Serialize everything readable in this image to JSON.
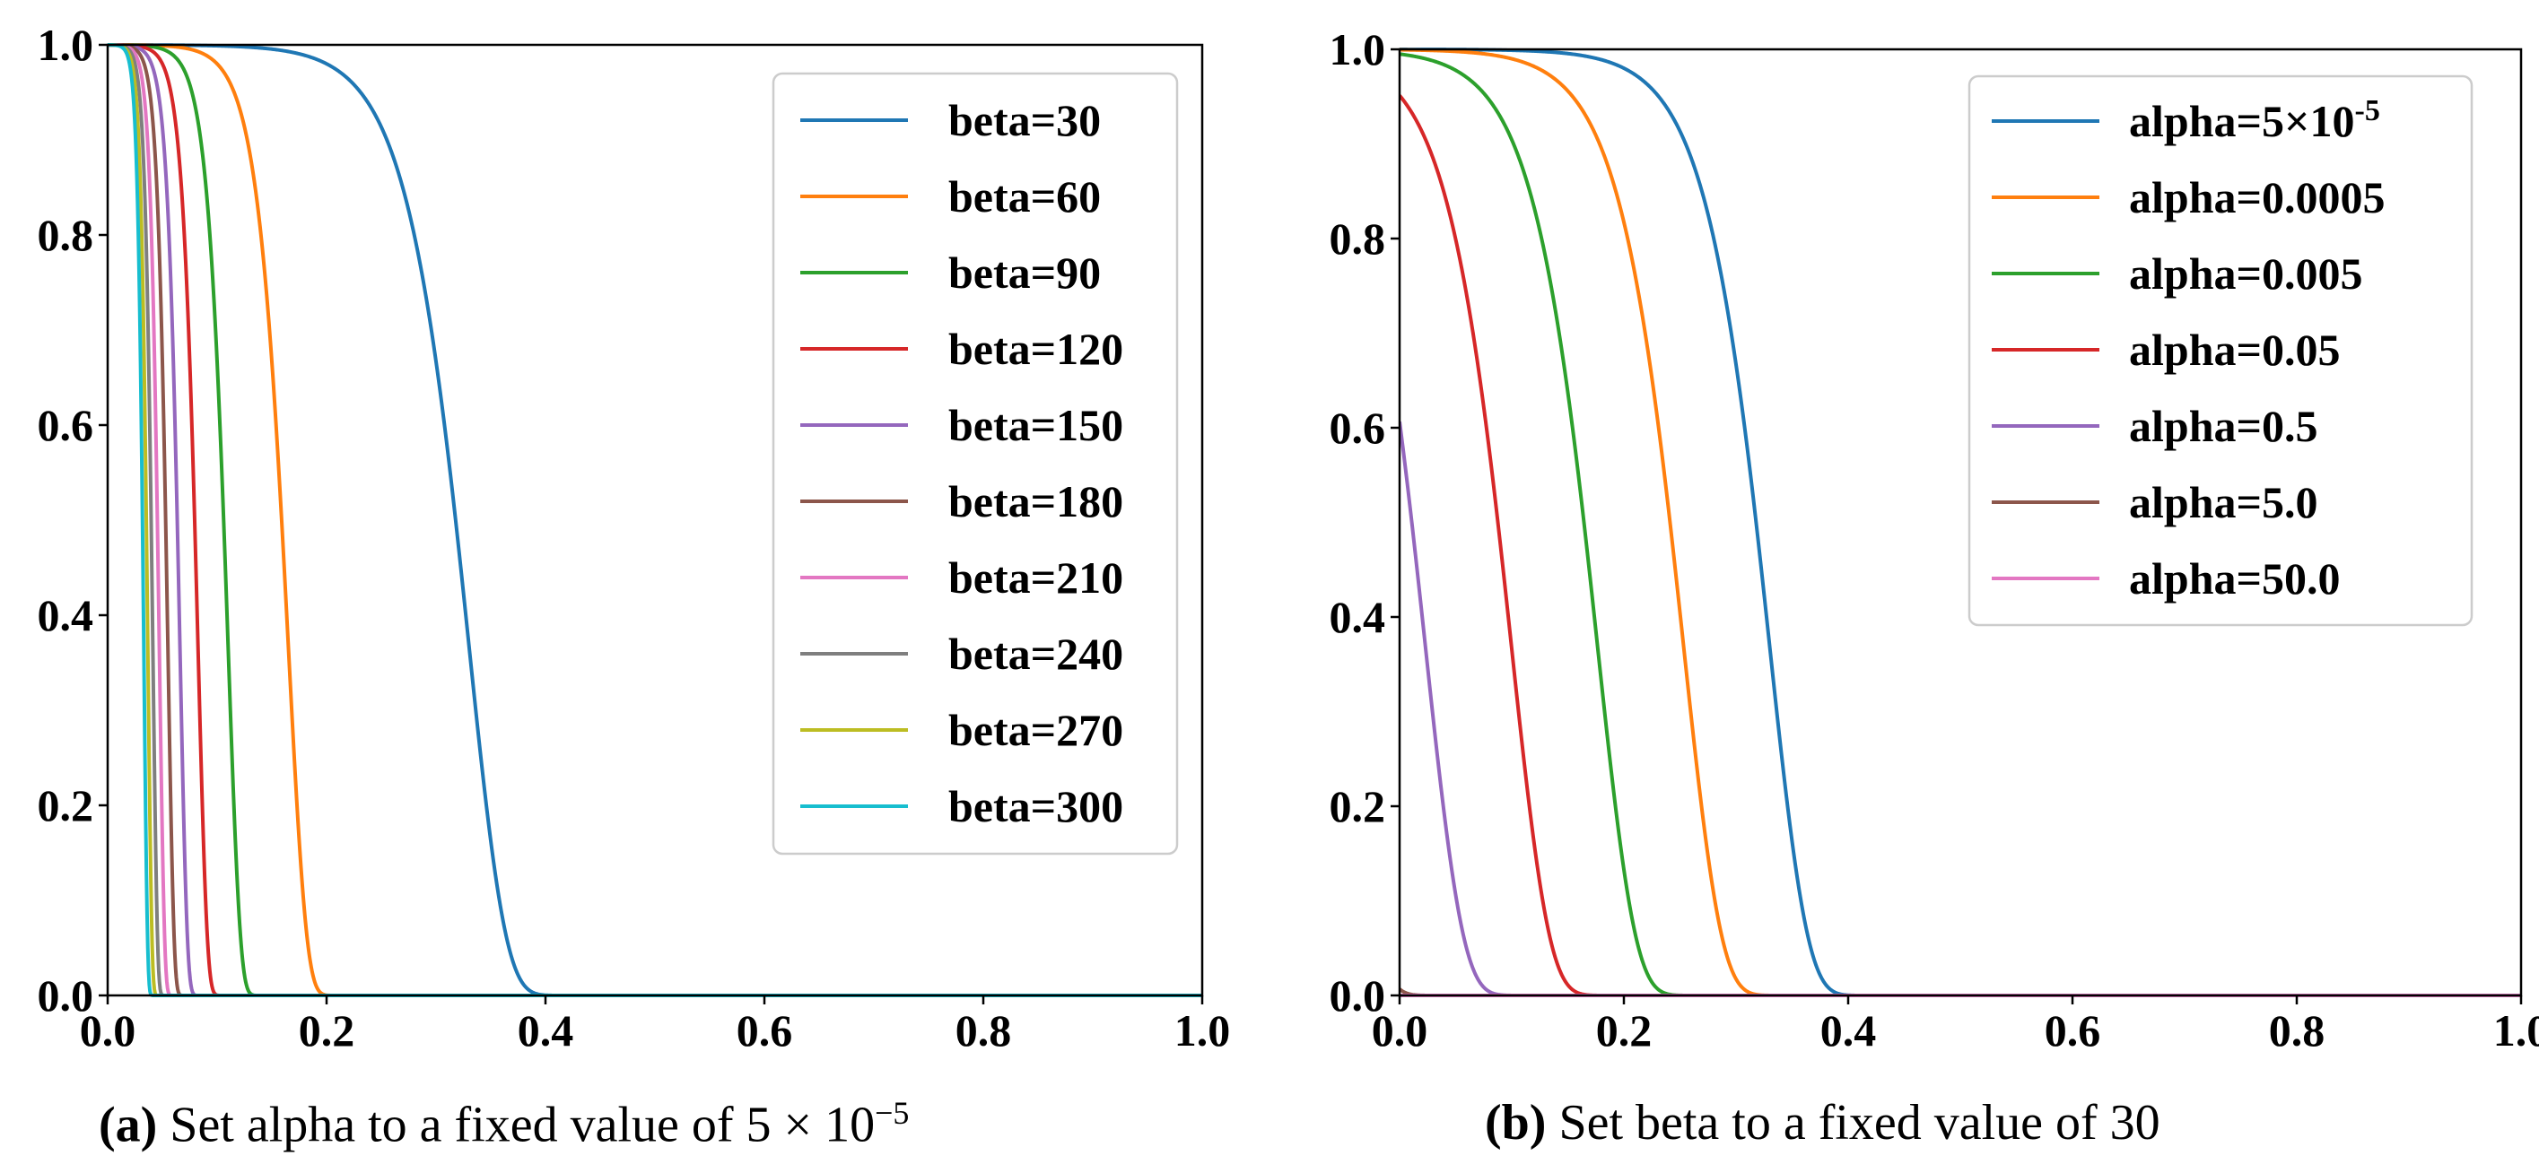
{
  "chart_data": [
    {
      "id": "a",
      "type": "line",
      "function": "exp(-alpha * exp(beta * x))",
      "alpha": 5e-05,
      "xlim": [
        0,
        1
      ],
      "ylim": [
        0,
        1
      ],
      "xticks": [
        "0.0",
        "0.2",
        "0.4",
        "0.6",
        "0.8",
        "1.0"
      ],
      "yticks": [
        "0.0",
        "0.2",
        "0.4",
        "0.6",
        "0.8",
        "1.0"
      ],
      "legend_position": "top-right",
      "series": [
        {
          "name": "beta=30",
          "beta": 30,
          "color": "#1f77b4"
        },
        {
          "name": "beta=60",
          "beta": 60,
          "color": "#ff7f0e"
        },
        {
          "name": "beta=90",
          "beta": 90,
          "color": "#2ca02c"
        },
        {
          "name": "beta=120",
          "beta": 120,
          "color": "#d62728"
        },
        {
          "name": "beta=150",
          "beta": 150,
          "color": "#9467bd"
        },
        {
          "name": "beta=180",
          "beta": 180,
          "color": "#8c564b"
        },
        {
          "name": "beta=210",
          "beta": 210,
          "color": "#e377c2"
        },
        {
          "name": "beta=240",
          "beta": 240,
          "color": "#7f7f7f"
        },
        {
          "name": "beta=270",
          "beta": 270,
          "color": "#bcbd22"
        },
        {
          "name": "beta=300",
          "beta": 300,
          "color": "#17becf"
        }
      ],
      "caption_label": "(a)",
      "caption_text": "Set alpha to a fixed value of 5 × 10",
      "caption_exp": "−5"
    },
    {
      "id": "b",
      "type": "line",
      "function": "exp(-alpha * exp(beta * x))",
      "beta": 30,
      "xlim": [
        0,
        1
      ],
      "ylim": [
        0,
        1
      ],
      "xticks": [
        "0.0",
        "0.2",
        "0.4",
        "0.6",
        "0.8",
        "1.0"
      ],
      "yticks": [
        "0.0",
        "0.2",
        "0.4",
        "0.6",
        "0.8",
        "1.0"
      ],
      "legend_position": "top-right",
      "series": [
        {
          "name": "alpha=5×10",
          "name_sup": "-5",
          "alpha": 5e-05,
          "color": "#1f77b4"
        },
        {
          "name": "alpha=0.0005",
          "alpha": 0.0005,
          "color": "#ff7f0e"
        },
        {
          "name": "alpha=0.005",
          "alpha": 0.005,
          "color": "#2ca02c"
        },
        {
          "name": "alpha=0.05",
          "alpha": 0.05,
          "color": "#d62728"
        },
        {
          "name": "alpha=0.5",
          "alpha": 0.5,
          "color": "#9467bd"
        },
        {
          "name": "alpha=5.0",
          "alpha": 5.0,
          "color": "#8c564b"
        },
        {
          "name": "alpha=50.0",
          "alpha": 50.0,
          "color": "#e377c2"
        }
      ],
      "caption_label": "(b)",
      "caption_text": "Set beta to a fixed value of 30"
    }
  ]
}
